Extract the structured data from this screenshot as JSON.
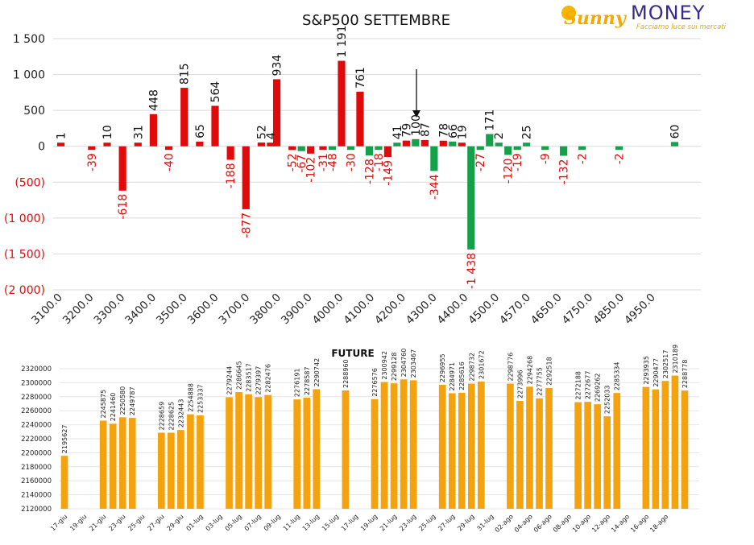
{
  "brand": {
    "logo_text": "MONEY",
    "logo_script": "Sunny",
    "tagline": "Facciamo luce sui mercati"
  },
  "colors": {
    "positive": "#e00a0a",
    "negative": "#15a04a",
    "neg_label": "#e00a0a",
    "future": "#f5a20f",
    "grid": "#d9d9d9",
    "axis_text": "#222222"
  },
  "chart_data": [
    {
      "type": "bar",
      "title": "S&P500 SETTEMBRE",
      "ylim": [
        -2000,
        1500
      ],
      "yticks": [
        {
          "v": 1500,
          "label": "1 500",
          "color": "#222222"
        },
        {
          "v": 1000,
          "label": "1 000",
          "color": "#222222"
        },
        {
          "v": 500,
          "label": "500",
          "color": "#222222"
        },
        {
          "v": 0,
          "label": "0",
          "color": "#222222"
        },
        {
          "v": -500,
          "label": "(500)",
          "color": "#e00a0a"
        },
        {
          "v": -1000,
          "label": "(1 000)",
          "color": "#e00a0a"
        },
        {
          "v": -1500,
          "label": "(1 500)",
          "color": "#e00a0a"
        },
        {
          "v": -2000,
          "label": "(2 000)",
          "color": "#e00a0a"
        }
      ],
      "xtick_labels": [
        "3100.0",
        "3200.0",
        "3300.0",
        "3400.0",
        "3500.0",
        "3600.0",
        "3700.0",
        "3800.0",
        "3900.0",
        "4000.0",
        "4100.0",
        "4200.0",
        "4300.0",
        "4400.0",
        "4500.0",
        "4570.0",
        "4650.0",
        "4750.0",
        "4850.0",
        "4950.0"
      ],
      "grid": true,
      "marker_arrow": "down arrow above 4200",
      "bars": [
        {
          "i": 0,
          "v": 1,
          "c": "red",
          "label": "1"
        },
        {
          "i": 2,
          "v": -39,
          "c": "red",
          "label": "-39"
        },
        {
          "i": 3,
          "v": 10,
          "c": "red",
          "label": "10"
        },
        {
          "i": 4,
          "v": -618,
          "c": "red",
          "label": "-618"
        },
        {
          "i": 5,
          "v": 31,
          "c": "red",
          "label": "31"
        },
        {
          "i": 6,
          "v": 448,
          "c": "red",
          "label": "448"
        },
        {
          "i": 7,
          "v": -40,
          "c": "red",
          "label": "-40"
        },
        {
          "i": 8,
          "v": 815,
          "c": "red",
          "label": "815"
        },
        {
          "i": 9,
          "v": 65,
          "c": "red",
          "label": "65"
        },
        {
          "i": 10,
          "v": 564,
          "c": "red",
          "label": "564"
        },
        {
          "i": 11,
          "v": -188,
          "c": "red",
          "label": "-188"
        },
        {
          "i": 12,
          "v": -877,
          "c": "red",
          "label": "-877"
        },
        {
          "i": 13,
          "v": 52,
          "c": "red",
          "label": "52"
        },
        {
          "i": 13.6,
          "v": 4,
          "c": "red",
          "label": "4"
        },
        {
          "i": 14,
          "v": 934,
          "c": "red",
          "label": "934"
        },
        {
          "i": 15,
          "v": -52,
          "c": "red",
          "label": "-52"
        },
        {
          "i": 15.6,
          "v": -67,
          "c": "green",
          "label": "-67"
        },
        {
          "i": 16.2,
          "v": -102,
          "c": "red",
          "label": "-102"
        },
        {
          "i": 17,
          "v": -31,
          "c": "red",
          "label": "-31"
        },
        {
          "i": 17.6,
          "v": -48,
          "c": "green",
          "label": "-48"
        },
        {
          "i": 18.2,
          "v": 1191,
          "c": "red",
          "label": "1 191"
        },
        {
          "i": 18.8,
          "v": -30,
          "c": "green",
          "label": "-30"
        },
        {
          "i": 19.4,
          "v": 761,
          "c": "red",
          "label": "761"
        },
        {
          "i": 20,
          "v": -128,
          "c": "green",
          "label": "-128"
        },
        {
          "i": 20.6,
          "v": -18,
          "c": "green",
          "label": "-18"
        },
        {
          "i": 21.2,
          "v": -149,
          "c": "red",
          "label": "-149"
        },
        {
          "i": 21.8,
          "v": 41,
          "c": "green",
          "label": "41"
        },
        {
          "i": 22.4,
          "v": 79,
          "c": "red",
          "label": "79"
        },
        {
          "i": 23,
          "v": 100,
          "c": "green",
          "label": "100"
        },
        {
          "i": 23.6,
          "v": 87,
          "c": "red",
          "label": "87"
        },
        {
          "i": 24.2,
          "v": -344,
          "c": "green",
          "label": "-344"
        },
        {
          "i": 24.8,
          "v": 78,
          "c": "red",
          "label": "78"
        },
        {
          "i": 25.4,
          "v": 66,
          "c": "green",
          "label": "66"
        },
        {
          "i": 26,
          "v": 19,
          "c": "red",
          "label": "19"
        },
        {
          "i": 26.6,
          "v": -1438,
          "c": "green",
          "label": "-1 438"
        },
        {
          "i": 27.2,
          "v": -27,
          "c": "green",
          "label": "-27"
        },
        {
          "i": 27.8,
          "v": 171,
          "c": "green",
          "label": "171"
        },
        {
          "i": 28.4,
          "v": 2,
          "c": "green",
          "label": "2"
        },
        {
          "i": 29,
          "v": -120,
          "c": "green",
          "label": "-120"
        },
        {
          "i": 29.6,
          "v": -19,
          "c": "green",
          "label": "-19"
        },
        {
          "i": 30.2,
          "v": 25,
          "c": "green",
          "label": "25"
        },
        {
          "i": 31.4,
          "v": -9,
          "c": "green",
          "label": "-9"
        },
        {
          "i": 32.6,
          "v": -132,
          "c": "green",
          "label": "-132"
        },
        {
          "i": 33.8,
          "v": -2,
          "c": "green",
          "label": "-2"
        },
        {
          "i": 36.2,
          "v": -2,
          "c": "green",
          "label": "-2"
        },
        {
          "i": 39.8,
          "v": 60,
          "c": "green",
          "label": "60"
        }
      ]
    },
    {
      "type": "bar",
      "title": "FUTURE",
      "ylim": [
        2120000,
        2320000
      ],
      "ytick_labels": [
        "2320000",
        "2300000",
        "2280000",
        "2260000",
        "2240000",
        "2220000",
        "2200000",
        "2180000",
        "2160000",
        "2140000",
        "2120000"
      ],
      "date_labels": [
        "17-giu",
        "19-giu",
        "21-giu",
        "23-giu",
        "25-giu",
        "27-giu",
        "29-giu",
        "01-lug",
        "03-lug",
        "05-lug",
        "07-lug",
        "09-lug",
        "11-lug",
        "13-lug",
        "15-lug",
        "17-lug",
        "19-lug",
        "21-lug",
        "23-lug",
        "25-lug",
        "27-lug",
        "29-lug",
        "31-lug",
        "02-ago",
        "04-ago",
        "06-ago",
        "08-ago",
        "10-ago",
        "12-ago",
        "14-ago",
        "16-ago",
        "18-ago"
      ],
      "bars": [
        {
          "slot": 0,
          "v": 2195627
        },
        {
          "slot": 4,
          "v": 2245875
        },
        {
          "slot": 5,
          "v": 2241460
        },
        {
          "slot": 6,
          "v": 2250580
        },
        {
          "slot": 7,
          "v": 2249787
        },
        {
          "slot": 10,
          "v": 2228659
        },
        {
          "slot": 11,
          "v": 2228625
        },
        {
          "slot": 12,
          "v": 2232443
        },
        {
          "slot": 13,
          "v": 2254888
        },
        {
          "slot": 14,
          "v": 2253337
        },
        {
          "slot": 17,
          "v": 2279244
        },
        {
          "slot": 18,
          "v": 2286645
        },
        {
          "slot": 19,
          "v": 2283517
        },
        {
          "slot": 20,
          "v": 2279397
        },
        {
          "slot": 21,
          "v": 2282476
        },
        {
          "slot": 24,
          "v": 2276191
        },
        {
          "slot": 25,
          "v": 2278587
        },
        {
          "slot": 26,
          "v": 2290742
        },
        {
          "slot": 29,
          "v": 2288960
        },
        {
          "slot": 32,
          "v": 2276576
        },
        {
          "slot": 33,
          "v": 2300942
        },
        {
          "slot": 34,
          "v": 2299128
        },
        {
          "slot": 35,
          "v": 2304760
        },
        {
          "slot": 36,
          "v": 2303467
        },
        {
          "slot": 39,
          "v": 2296955
        },
        {
          "slot": 40,
          "v": 2284971
        },
        {
          "slot": 41,
          "v": 2285616
        },
        {
          "slot": 42,
          "v": 2298732
        },
        {
          "slot": 43,
          "v": 2301672
        },
        {
          "slot": 46,
          "v": 2298776
        },
        {
          "slot": 47,
          "v": 2273996
        },
        {
          "slot": 48,
          "v": 2294268
        },
        {
          "slot": 49,
          "v": 2277755
        },
        {
          "slot": 50,
          "v": 2292518
        },
        {
          "slot": 53,
          "v": 2272188
        },
        {
          "slot": 54,
          "v": 2272677
        },
        {
          "slot": 55,
          "v": 2269262
        },
        {
          "slot": 56,
          "v": 2252033
        },
        {
          "slot": 57,
          "v": 2285334
        },
        {
          "slot": 60,
          "v": 2293935
        },
        {
          "slot": 61,
          "v": 2290477
        },
        {
          "slot": 62,
          "v": 2302517
        },
        {
          "slot": 63,
          "v": 2310189
        },
        {
          "slot": 64,
          "v": 2288778
        }
      ]
    }
  ]
}
